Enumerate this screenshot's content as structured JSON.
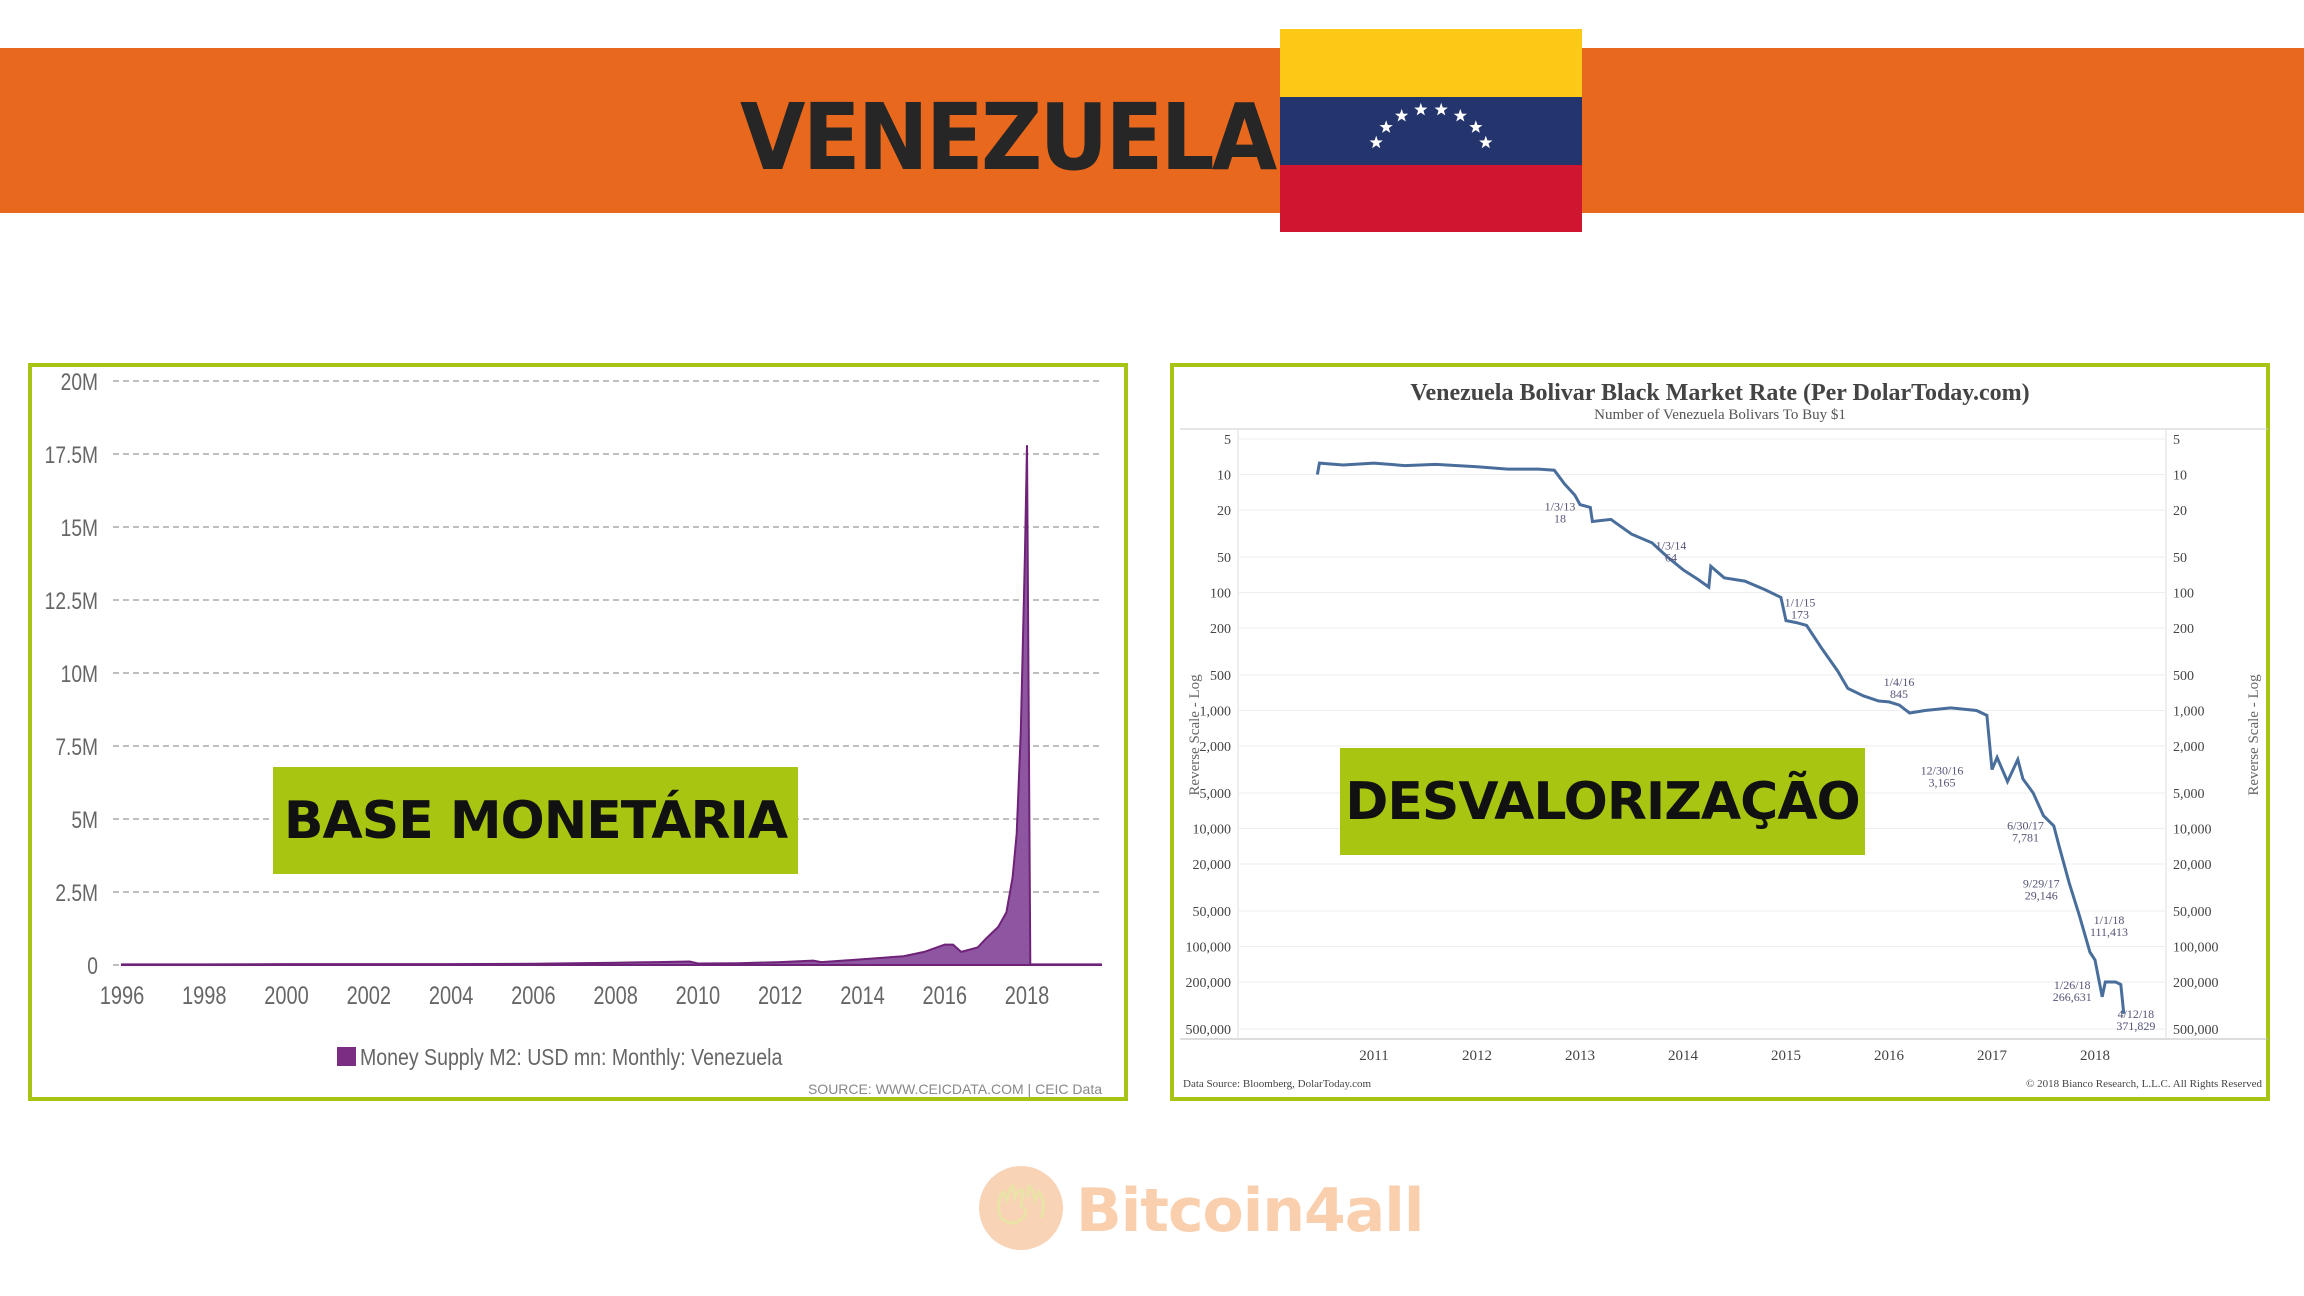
{
  "header": {
    "title": "VENEZUELA",
    "flag": {
      "yellow": "#FDC917",
      "blue": "#24346C",
      "red": "#D01530",
      "stars": 8
    }
  },
  "logo": {
    "text": "Bitcoin4all",
    "icon": "hands-icon"
  },
  "chart_data": [
    {
      "type": "area",
      "title": "",
      "label_box": "BASE MONETÁRIA",
      "ylim": [
        0,
        20
      ],
      "y_ticks": [
        "0",
        "2.5M",
        "5M",
        "7.5M",
        "10M",
        "12.5M",
        "15M",
        "17.5M",
        "20M"
      ],
      "x_ticks": [
        "1996",
        "1998",
        "2000",
        "2002",
        "2004",
        "2006",
        "2008",
        "2010",
        "2012",
        "2014",
        "2016",
        "2018"
      ],
      "legend": "Money Supply M2: USD mn: Monthly: Venezuela",
      "source": "SOURCE: WWW.CEICDATA.COM | CEIC Data",
      "color": "#7B2C83",
      "series": {
        "name": "Money Supply M2 (M)",
        "x": [
          1996,
          1998,
          2000,
          2002,
          2004,
          2006,
          2007,
          2008,
          2009,
          2009.8,
          2010,
          2011,
          2012,
          2012.8,
          2013,
          2014,
          2015,
          2015.5,
          2016,
          2016.2,
          2016.4,
          2016.8,
          2017,
          2017.3,
          2017.5,
          2017.65,
          2017.75,
          2017.85,
          2017.95,
          2018.0,
          2018.08,
          2019.8
        ],
        "values": [
          0.02,
          0.02,
          0.03,
          0.03,
          0.03,
          0.04,
          0.06,
          0.08,
          0.1,
          0.12,
          0.05,
          0.06,
          0.1,
          0.15,
          0.1,
          0.2,
          0.3,
          0.45,
          0.7,
          0.7,
          0.45,
          0.6,
          0.9,
          1.3,
          1.8,
          3.0,
          4.5,
          8.0,
          14.0,
          17.8,
          0.02,
          0.02
        ]
      }
    },
    {
      "type": "line",
      "title": "Venezuela Bolivar Black Market Rate (Per DolarToday.com)",
      "subtitle": "Number of Venezuela Bolivars To Buy $1",
      "label_box": "DESVALORIZAÇÃO",
      "ylabel": "Reverse Scale - Log",
      "yscale": "log-reversed",
      "ylim": [
        5,
        500000
      ],
      "y_ticks": [
        "5",
        "10",
        "20",
        "50",
        "100",
        "200",
        "500",
        "1,000",
        "2,000",
        "5,000",
        "10,000",
        "20,000",
        "50,000",
        "100,000",
        "200,000",
        "500,000"
      ],
      "y_tick_values": [
        5,
        10,
        20,
        50,
        100,
        200,
        500,
        1000,
        2000,
        5000,
        10000,
        20000,
        50000,
        100000,
        200000,
        500000
      ],
      "x_ticks": [
        "2011",
        "2012",
        "2013",
        "2014",
        "2015",
        "2016",
        "2017",
        "2018"
      ],
      "source": "Data Source: Bloomberg, DolarToday.com",
      "copyright": "© 2018 Bianco Research, L.L.C. All Rights Reserved",
      "color": "#4A6E9B",
      "series": {
        "name": "Bolivars per USD",
        "x": [
          2010.45,
          2010.47,
          2010.7,
          2011,
          2011.3,
          2011.6,
          2012,
          2012.3,
          2012.6,
          2012.75,
          2012.85,
          2012.95,
          2013.0,
          2013.1,
          2013.12,
          2013.3,
          2013.5,
          2013.7,
          2013.85,
          2014.0,
          2014.15,
          2014.25,
          2014.27,
          2014.4,
          2014.6,
          2014.8,
          2014.95,
          2015.0,
          2015.1,
          2015.2,
          2015.35,
          2015.5,
          2015.6,
          2015.75,
          2015.9,
          2016.0,
          2016.1,
          2016.2,
          2016.35,
          2016.6,
          2016.85,
          2016.95,
          2017.0,
          2017.05,
          2017.15,
          2017.25,
          2017.3,
          2017.4,
          2017.5,
          2017.6,
          2017.65,
          2017.75,
          2017.85,
          2017.95,
          2018.0,
          2018.07,
          2018.1,
          2018.2,
          2018.25,
          2018.28
        ],
        "values": [
          10,
          8,
          8.3,
          8,
          8.4,
          8.2,
          8.6,
          9,
          9,
          9.2,
          12,
          15,
          18,
          19,
          25,
          24,
          32,
          38,
          50,
          64,
          78,
          90,
          60,
          75,
          80,
          95,
          110,
          173,
          180,
          190,
          300,
          460,
          650,
          750,
          830,
          845,
          900,
          1050,
          1000,
          950,
          1000,
          1100,
          3165,
          2500,
          4000,
          2600,
          3800,
          5000,
          7781,
          9500,
          14000,
          29146,
          55000,
          111413,
          130000,
          266631,
          200000,
          200000,
          210000,
          371829
        ]
      },
      "annotations": [
        {
          "date": "1/3/13",
          "value": "18",
          "x": 2013.0,
          "y": 18
        },
        {
          "date": "1/3/14",
          "value": "64",
          "x": 2014.0,
          "y": 64
        },
        {
          "date": "1/1/15",
          "value": "173",
          "x": 2015.0,
          "y": 173
        },
        {
          "date": "1/4/16",
          "value": "845",
          "x": 2016.0,
          "y": 845
        },
        {
          "date": "12/30/16",
          "value": "3,165",
          "x": 2017.0,
          "y": 3165
        },
        {
          "date": "6/30/17",
          "value": "7,781",
          "x": 2017.5,
          "y": 7781
        },
        {
          "date": "9/29/17",
          "value": "29,146",
          "x": 2017.75,
          "y": 29146
        },
        {
          "date": "1/1/18",
          "value": "111,413",
          "x": 2018.0,
          "y": 111413
        },
        {
          "date": "1/26/18",
          "value": "266,631",
          "x": 2018.07,
          "y": 266631
        },
        {
          "date": "4/12/18",
          "value": "371,829",
          "x": 2018.28,
          "y": 371829
        }
      ]
    }
  ]
}
